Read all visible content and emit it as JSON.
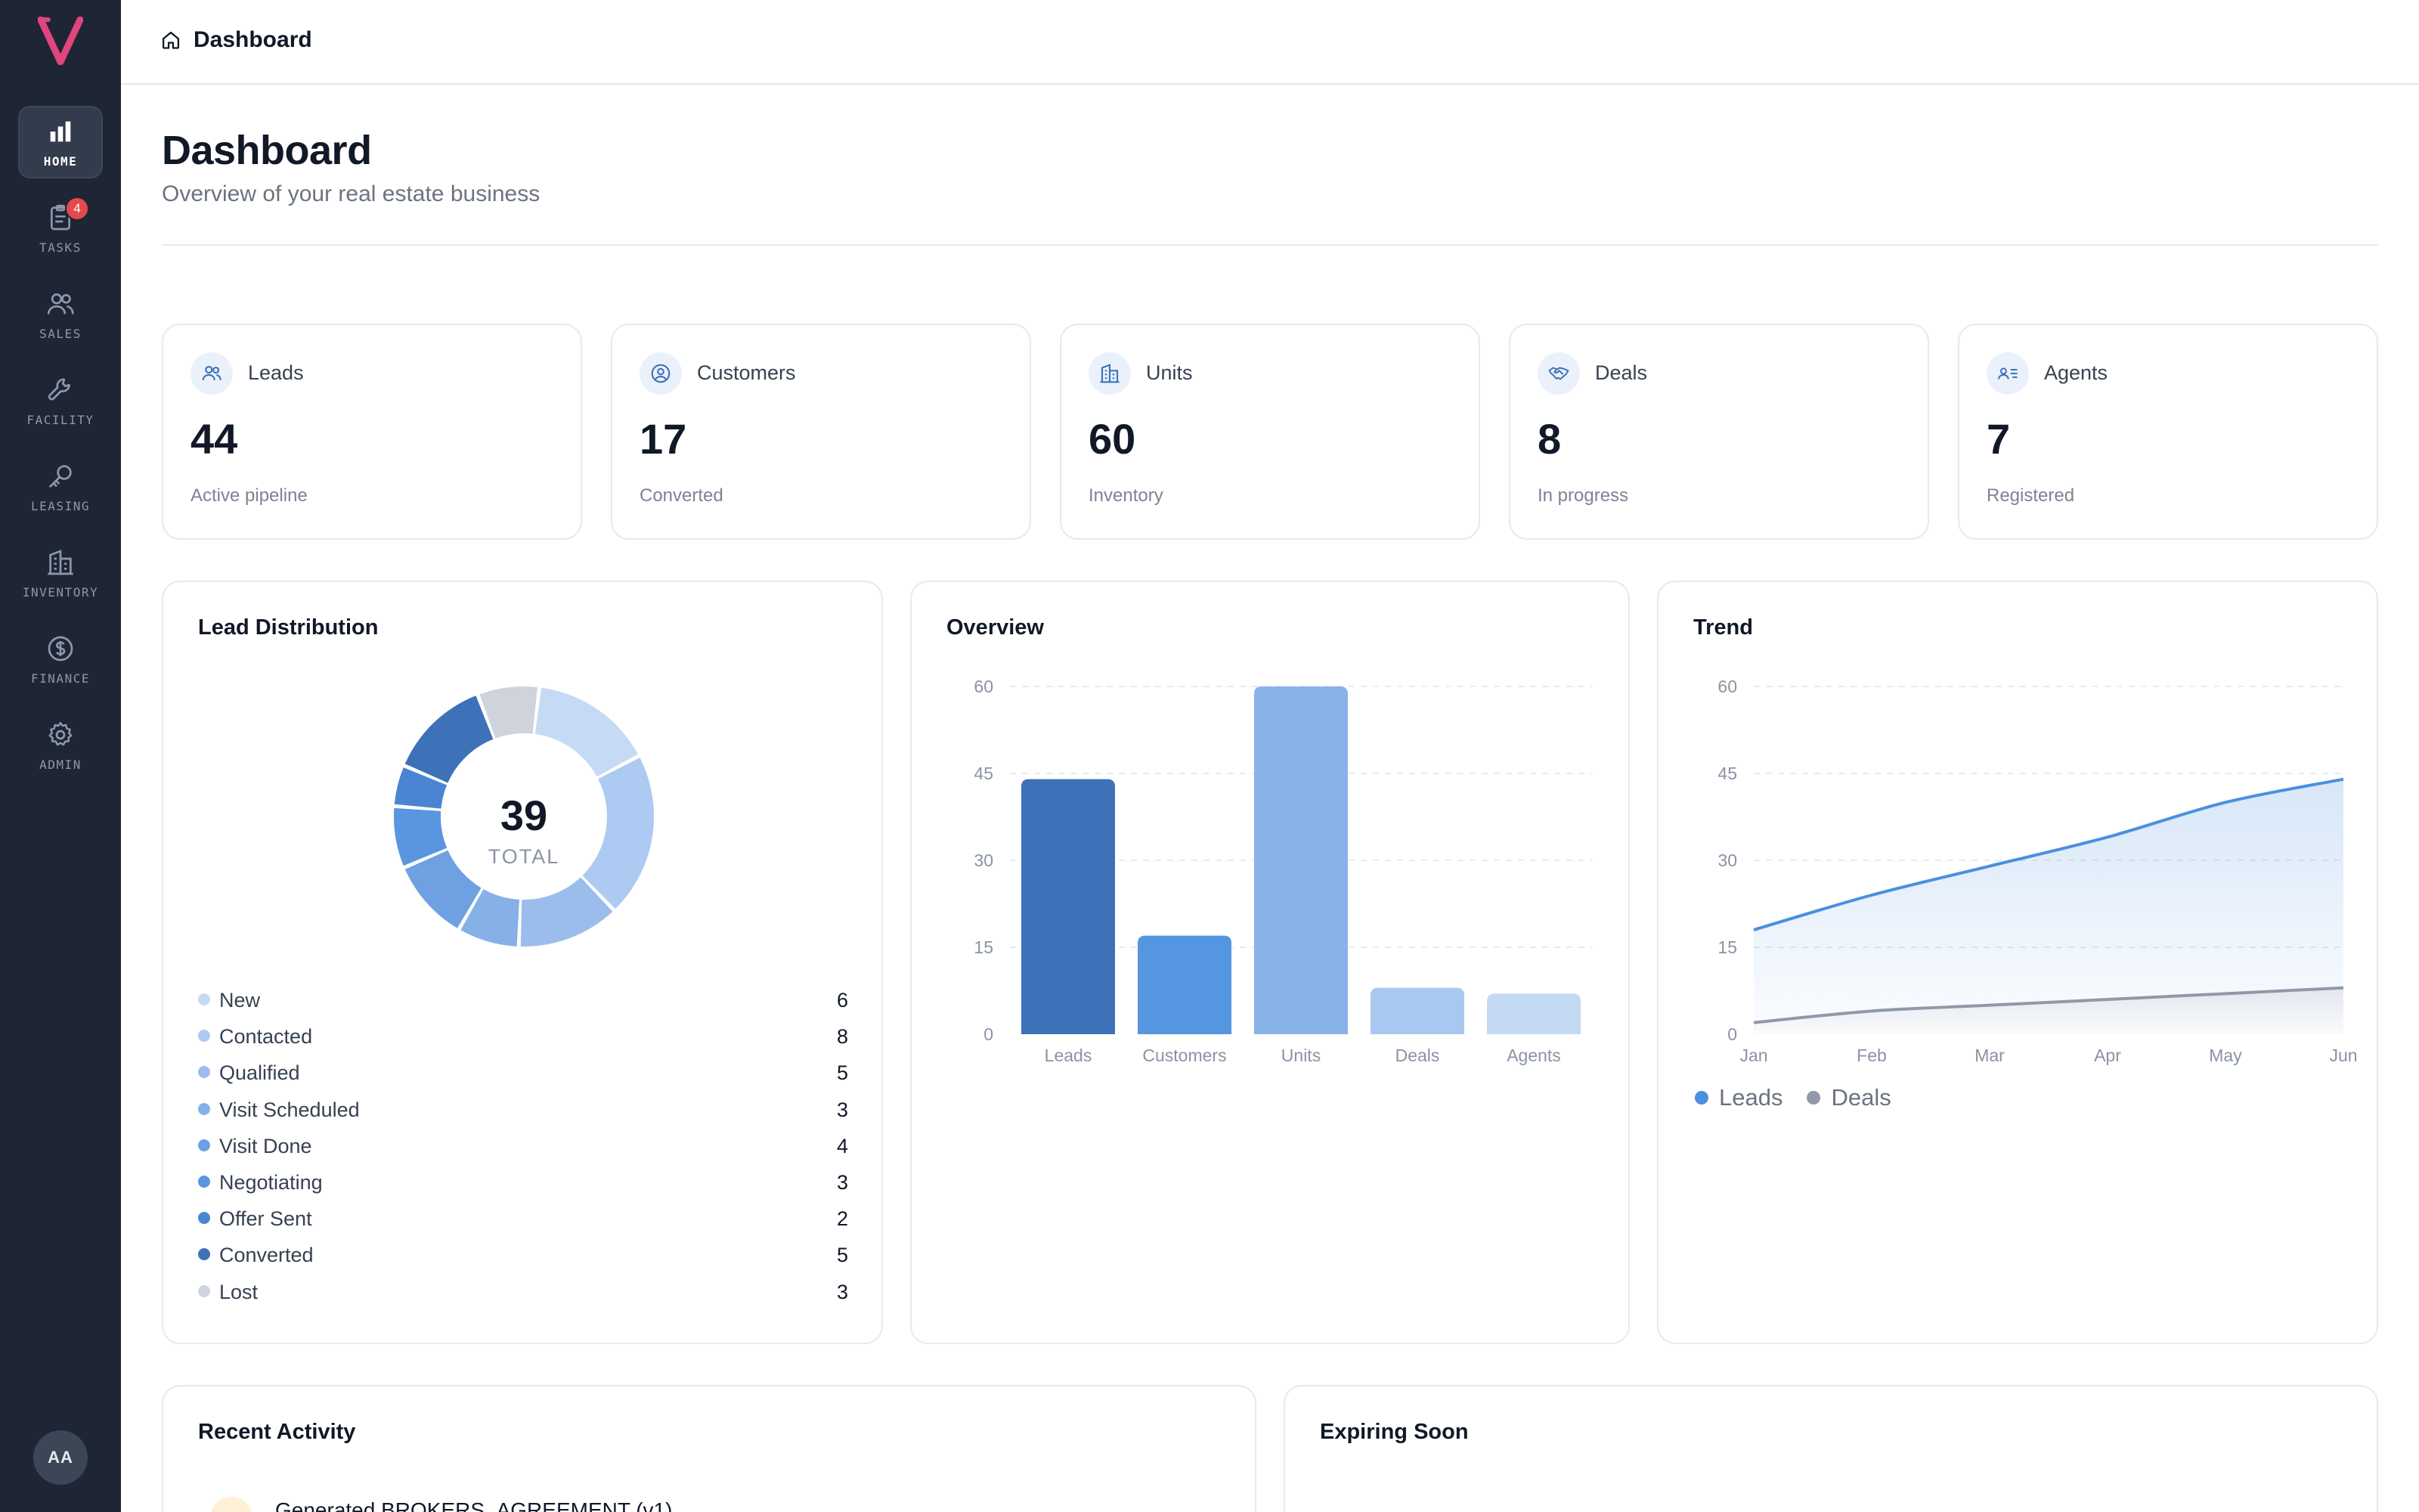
{
  "app": {
    "logo_letter": "V",
    "avatar_initials": "AA"
  },
  "sidebar": {
    "items": [
      {
        "label": "HOME",
        "icon": "bar-chart-icon",
        "active": true
      },
      {
        "label": "TASKS",
        "icon": "clipboard-icon",
        "badge": "4"
      },
      {
        "label": "SALES",
        "icon": "users-icon"
      },
      {
        "label": "FACILITY",
        "icon": "wrench-icon"
      },
      {
        "label": "LEASING",
        "icon": "key-icon"
      },
      {
        "label": "INVENTORY",
        "icon": "building-icon"
      },
      {
        "label": "FINANCE",
        "icon": "dollar-circle-icon"
      },
      {
        "label": "ADMIN",
        "icon": "gear-icon"
      }
    ]
  },
  "topbar": {
    "breadcrumb": "Dashboard",
    "breadcrumb_icon": "home-icon"
  },
  "header": {
    "title": "Dashboard",
    "subtitle": "Overview of your real estate business"
  },
  "stats": [
    {
      "label": "Leads",
      "value": "44",
      "sub": "Active pipeline",
      "icon": "users-icon"
    },
    {
      "label": "Customers",
      "value": "17",
      "sub": "Converted",
      "icon": "user-circle-icon"
    },
    {
      "label": "Units",
      "value": "60",
      "sub": "Inventory",
      "icon": "building-icon"
    },
    {
      "label": "Deals",
      "value": "8",
      "sub": "In progress",
      "icon": "handshake-icon"
    },
    {
      "label": "Agents",
      "value": "7",
      "sub": "Registered",
      "icon": "id-card-icon"
    }
  ],
  "lead_distribution": {
    "title": "Lead Distribution",
    "total": "39",
    "total_label": "TOTAL"
  },
  "overview": {
    "title": "Overview"
  },
  "trend": {
    "title": "Trend"
  },
  "bottom": {
    "recent_activity_title": "Recent Activity",
    "expiring_soon_title": "Expiring Soon",
    "activity_first_item": "Generated BROKERS_AGREEMENT (v1)"
  },
  "chart_data": [
    {
      "type": "pie",
      "title": "Lead Distribution",
      "categories": [
        "New",
        "Contacted",
        "Qualified",
        "Visit Scheduled",
        "Visit Done",
        "Negotiating",
        "Offer Sent",
        "Converted",
        "Lost"
      ],
      "values": [
        6,
        8,
        5,
        3,
        4,
        3,
        2,
        5,
        3
      ],
      "colors": [
        "#c5dbf5",
        "#adcaf2",
        "#9bbdec",
        "#86b0e8",
        "#6ea0e2",
        "#5a95e0",
        "#4a85d3",
        "#3d72b8",
        "#cfd4dc"
      ],
      "center_value": 39
    },
    {
      "type": "bar",
      "title": "Overview",
      "categories": [
        "Leads",
        "Customers",
        "Units",
        "Deals",
        "Agents"
      ],
      "values": [
        44,
        17,
        60,
        8,
        7
      ],
      "colors": [
        "#3d72b8",
        "#5596e0",
        "#89b2e8",
        "#a9c8f0",
        "#c4daf4"
      ],
      "ylim": [
        0,
        60
      ],
      "yticks": [
        0,
        15,
        30,
        45,
        60
      ]
    },
    {
      "type": "area",
      "title": "Trend",
      "categories": [
        "Jan",
        "Feb",
        "Mar",
        "Apr",
        "May",
        "Jun"
      ],
      "series": [
        {
          "name": "Leads",
          "values": [
            18,
            24,
            29,
            34,
            40,
            44
          ],
          "color": "#4a8fe0"
        },
        {
          "name": "Deals",
          "values": [
            2,
            4,
            5,
            6,
            7,
            8
          ],
          "color": "#9099a8"
        }
      ],
      "ylim": [
        0,
        60
      ],
      "yticks": [
        0,
        15,
        30,
        45,
        60
      ]
    }
  ]
}
